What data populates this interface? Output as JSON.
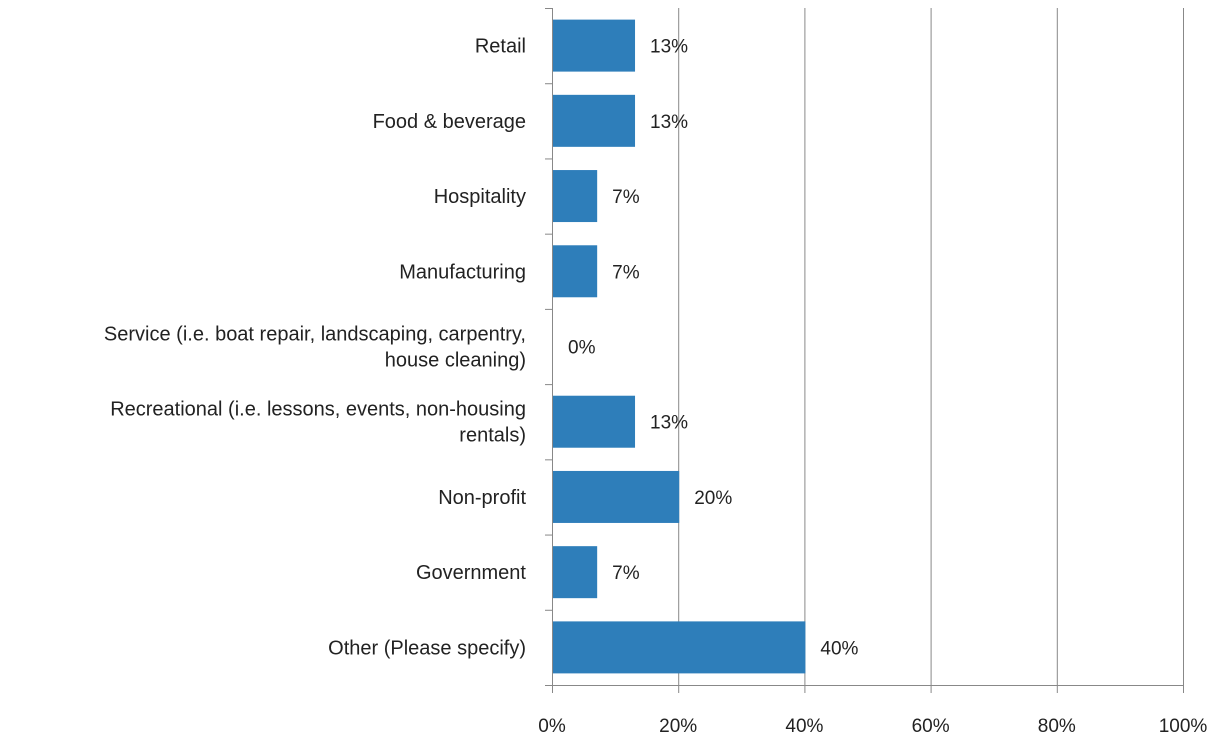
{
  "chart_data": {
    "type": "bar",
    "orientation": "horizontal",
    "categories": [
      [
        "Retail"
      ],
      [
        "Food & beverage"
      ],
      [
        "Hospitality"
      ],
      [
        "Manufacturing"
      ],
      [
        "Service (i.e. boat repair, landscaping, carpentry,",
        "house cleaning)"
      ],
      [
        "Recreational (i.e. lessons, events, non-housing",
        "rentals)"
      ],
      [
        "Non-profit"
      ],
      [
        "Government"
      ],
      [
        "Other (Please specify)"
      ]
    ],
    "values": [
      13,
      13,
      7,
      7,
      0,
      13,
      20,
      7,
      40
    ],
    "data_labels": [
      "13%",
      "13%",
      "7%",
      "7%",
      "0%",
      "13%",
      "20%",
      "7%",
      "40%"
    ],
    "xlim": [
      0,
      100
    ],
    "x_ticks": [
      0,
      20,
      40,
      60,
      80,
      100
    ],
    "x_tick_labels": [
      "0%",
      "20%",
      "40%",
      "60%",
      "80%",
      "100%"
    ],
    "grid": "vertical",
    "bar_color": "#2E7EBA",
    "grid_color": "#888888"
  }
}
